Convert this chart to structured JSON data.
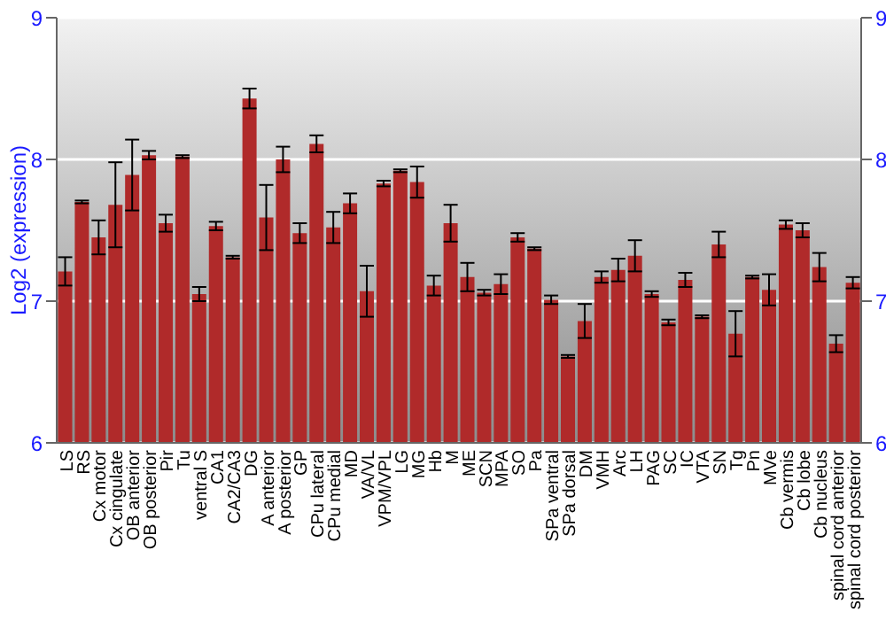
{
  "chart_data": {
    "type": "bar",
    "ylabel": "Log2 (expression)",
    "categories": [
      "LS",
      "RS",
      "Cx motor",
      "Cx cingulate",
      "OB anterior",
      "OB posterior",
      "Pir",
      "Tu",
      "ventral S",
      "CA1",
      "CA2/CA3",
      "DG",
      "A anterior",
      "A posterior",
      "GP",
      "CPu lateral",
      "CPu medial",
      "MD",
      "VA/VL",
      "VPM/VPL",
      "LG",
      "MG",
      "Hb",
      "M",
      "ME",
      "SCN",
      "MPA",
      "SO",
      "Pa",
      "SPa ventral",
      "SPa dorsal",
      "DM",
      "VMH",
      "Arc",
      "LH",
      "PAG",
      "SC",
      "IC",
      "VTA",
      "SN",
      "Tg",
      "Pn",
      "MVe",
      "Cb vermis",
      "Cb lobe",
      "Cb nucleus",
      "spinal cord anterior",
      "spinal cord posterior"
    ],
    "values": [
      7.21,
      7.7,
      7.45,
      7.68,
      7.89,
      8.03,
      7.55,
      8.02,
      7.05,
      7.53,
      7.31,
      8.43,
      7.59,
      8.0,
      7.48,
      8.11,
      7.52,
      7.69,
      7.07,
      7.83,
      7.92,
      7.84,
      7.11,
      7.55,
      7.17,
      7.06,
      7.12,
      7.45,
      7.37,
      7.01,
      6.61,
      6.86,
      7.17,
      7.22,
      7.32,
      7.05,
      6.85,
      7.15,
      6.89,
      7.4,
      6.77,
      7.17,
      7.08,
      7.54,
      7.5,
      7.24,
      6.7,
      7.13
    ],
    "errors": [
      0.1,
      0.01,
      0.12,
      0.3,
      0.25,
      0.03,
      0.06,
      0.01,
      0.05,
      0.03,
      0.01,
      0.07,
      0.23,
      0.09,
      0.07,
      0.06,
      0.11,
      0.07,
      0.18,
      0.02,
      0.01,
      0.11,
      0.07,
      0.13,
      0.1,
      0.02,
      0.07,
      0.03,
      0.01,
      0.03,
      0.01,
      0.12,
      0.04,
      0.08,
      0.11,
      0.02,
      0.02,
      0.05,
      0.01,
      0.09,
      0.16,
      0.01,
      0.11,
      0.03,
      0.05,
      0.1,
      0.06,
      0.04
    ],
    "color": "#b02a2a",
    "ylim": [
      6,
      9
    ],
    "yticks": [
      6,
      7,
      8,
      9
    ],
    "y2lim": [
      6,
      9
    ],
    "y2ticks": [
      6,
      7,
      8,
      9
    ],
    "grid": "y"
  }
}
